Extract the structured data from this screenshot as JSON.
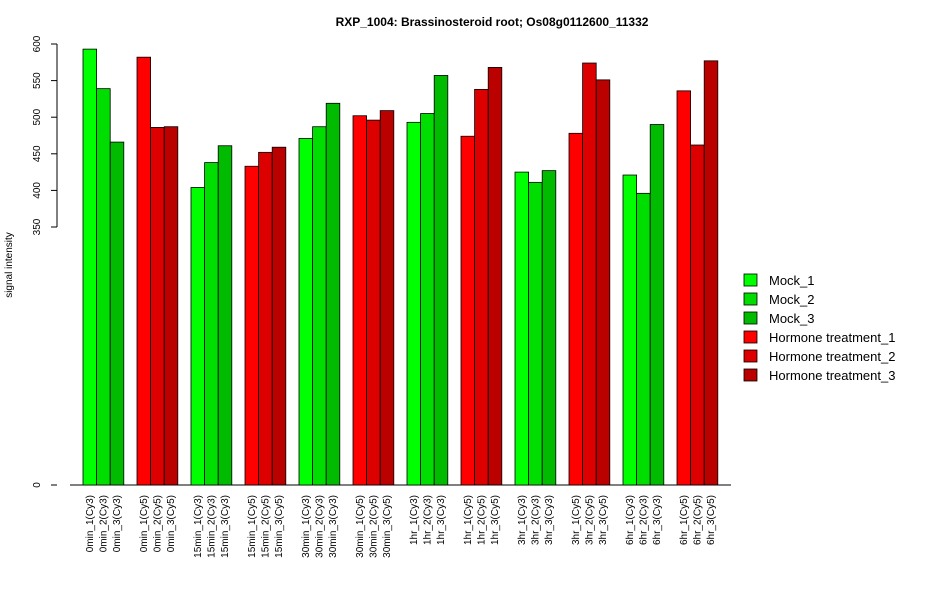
{
  "chart_data": {
    "type": "bar",
    "title": "RXP_1004: Brassinosteroid root; Os08g0112600_11332",
    "xlabel": "",
    "ylabel": "signal intensity",
    "ytick_labels": [
      "0",
      "350",
      "400",
      "450",
      "500",
      "550",
      "600"
    ],
    "ytick_values": [
      0,
      350,
      400,
      450,
      500,
      550,
      600
    ],
    "axis_break": "between 0 and 350",
    "grid": false,
    "legend_position": "right",
    "categories": [
      "0min_1(Cy3)",
      "0min_2(Cy3)",
      "0min_3(Cy3)",
      "0min_1(Cy5)",
      "0min_2(Cy5)",
      "0min_3(Cy5)",
      "15min_1(Cy3)",
      "15min_2(Cy3)",
      "15min_3(Cy3)",
      "15min_1(Cy5)",
      "15min_2(Cy5)",
      "15min_3(Cy5)",
      "30min_1(Cy3)",
      "30min_2(Cy3)",
      "30min_3(Cy3)",
      "30min_1(Cy5)",
      "30min_2(Cy5)",
      "30min_3(Cy5)",
      "1hr_1(Cy3)",
      "1hr_2(Cy3)",
      "1hr_3(Cy3)",
      "1hr_1(Cy5)",
      "1hr_2(Cy5)",
      "1hr_3(Cy5)",
      "3hr_1(Cy3)",
      "3hr_2(Cy3)",
      "3hr_3(Cy3)",
      "3hr_1(Cy5)",
      "3hr_2(Cy5)",
      "3hr_3(Cy5)",
      "6hr_1(Cy3)",
      "6hr_2(Cy3)",
      "6hr_3(Cy3)",
      "6hr_1(Cy5)",
      "6hr_2(Cy5)",
      "6hr_3(Cy5)"
    ],
    "values": [
      593,
      539,
      466,
      582,
      486,
      487,
      404,
      438,
      461,
      433,
      452,
      459,
      471,
      487,
      519,
      502,
      496,
      509,
      493,
      505,
      557,
      474,
      538,
      568,
      425,
      411,
      427,
      478,
      574,
      551,
      421,
      396,
      490,
      536,
      462,
      577
    ],
    "bar_series_index": [
      0,
      1,
      2,
      3,
      4,
      5,
      0,
      1,
      2,
      3,
      4,
      5,
      0,
      1,
      2,
      3,
      4,
      5,
      0,
      1,
      2,
      3,
      4,
      5,
      0,
      1,
      2,
      3,
      4,
      5,
      0,
      1,
      2,
      3,
      4,
      5
    ],
    "series": [
      {
        "name": "Mock_1",
        "color": "#00ff00"
      },
      {
        "name": "Mock_2",
        "color": "#00dd00"
      },
      {
        "name": "Mock_3",
        "color": "#00bb00"
      },
      {
        "name": "Hormone treatment_1",
        "color": "#ff0000"
      },
      {
        "name": "Hormone treatment_2",
        "color": "#dd0000"
      },
      {
        "name": "Hormone treatment_3",
        "color": "#bb0000"
      }
    ]
  }
}
